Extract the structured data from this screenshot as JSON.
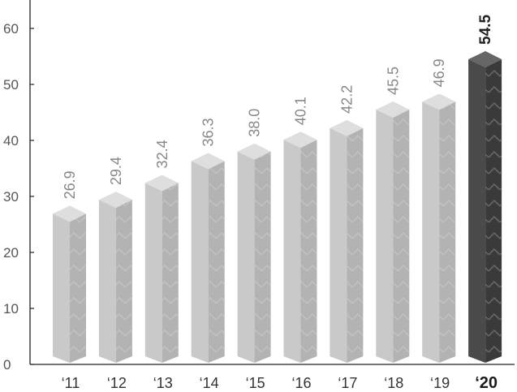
{
  "chart_data": {
    "type": "bar",
    "title": "",
    "xlabel": "",
    "ylabel": "",
    "categories": [
      "‘11",
      "‘12",
      "‘13",
      "‘14",
      "‘15",
      "‘16",
      "‘17",
      "‘18",
      "‘19",
      "‘20"
    ],
    "values": [
      26.9,
      29.4,
      32.4,
      36.3,
      38.0,
      40.1,
      42.2,
      45.5,
      46.9,
      54.5
    ],
    "value_labels": [
      "26.9",
      "29.4",
      "32.4",
      "36.3",
      "38.0",
      "40.1",
      "42.2",
      "45.5",
      "46.9",
      "54.5"
    ],
    "highlight_index": 9,
    "ylim": [
      0,
      65
    ],
    "yticks": [
      0,
      10,
      20,
      30,
      40,
      50,
      60
    ],
    "grid": false,
    "legend": "none",
    "colors": {
      "bar_front": "#c9c9c9",
      "bar_side": "#b3b3b3",
      "bar_top": "#dedede",
      "hl_front": "#4a4a4a",
      "hl_side": "#3a3a3a",
      "hl_top": "#666666",
      "axis": "#222222"
    }
  }
}
